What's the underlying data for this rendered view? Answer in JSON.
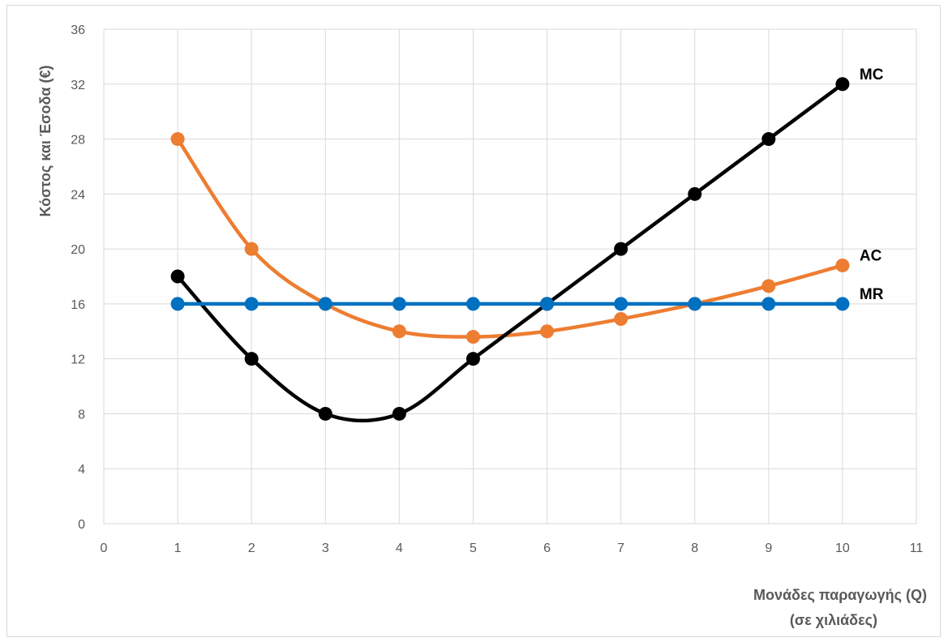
{
  "chart_data": {
    "type": "line",
    "title": "",
    "xlabel": [
      "Μονάδες παραγωγής (Q)",
      "(σε χιλιάδες)"
    ],
    "ylabel": "Κόστος και Έσοδα (€)",
    "xlim": [
      0,
      11
    ],
    "ylim": [
      0,
      36
    ],
    "x_ticks": [
      0,
      1,
      2,
      3,
      4,
      5,
      6,
      7,
      8,
      9,
      10,
      11
    ],
    "y_ticks": [
      0,
      4,
      8,
      12,
      16,
      20,
      24,
      28,
      32,
      36
    ],
    "grid": true,
    "smooth": true,
    "series": [
      {
        "name": "AC",
        "color": "#ED7D31",
        "x": [
          1,
          2,
          3,
          4,
          5,
          6,
          7,
          8,
          9,
          10
        ],
        "values": [
          28,
          20,
          16,
          14,
          13.6,
          14,
          14.9,
          16,
          17.3,
          18.8
        ]
      },
      {
        "name": "MC",
        "color": "#000000",
        "x": [
          1,
          2,
          3,
          4,
          5,
          6,
          7,
          8,
          9,
          10
        ],
        "values": [
          18,
          12,
          8,
          8,
          12,
          16,
          20,
          24,
          28,
          32
        ]
      },
      {
        "name": "MR",
        "color": "#0070C0",
        "x": [
          1,
          2,
          3,
          4,
          5,
          6,
          7,
          8,
          9,
          10
        ],
        "values": [
          16,
          16,
          16,
          16,
          16,
          16,
          16,
          16,
          16,
          16
        ]
      }
    ]
  }
}
